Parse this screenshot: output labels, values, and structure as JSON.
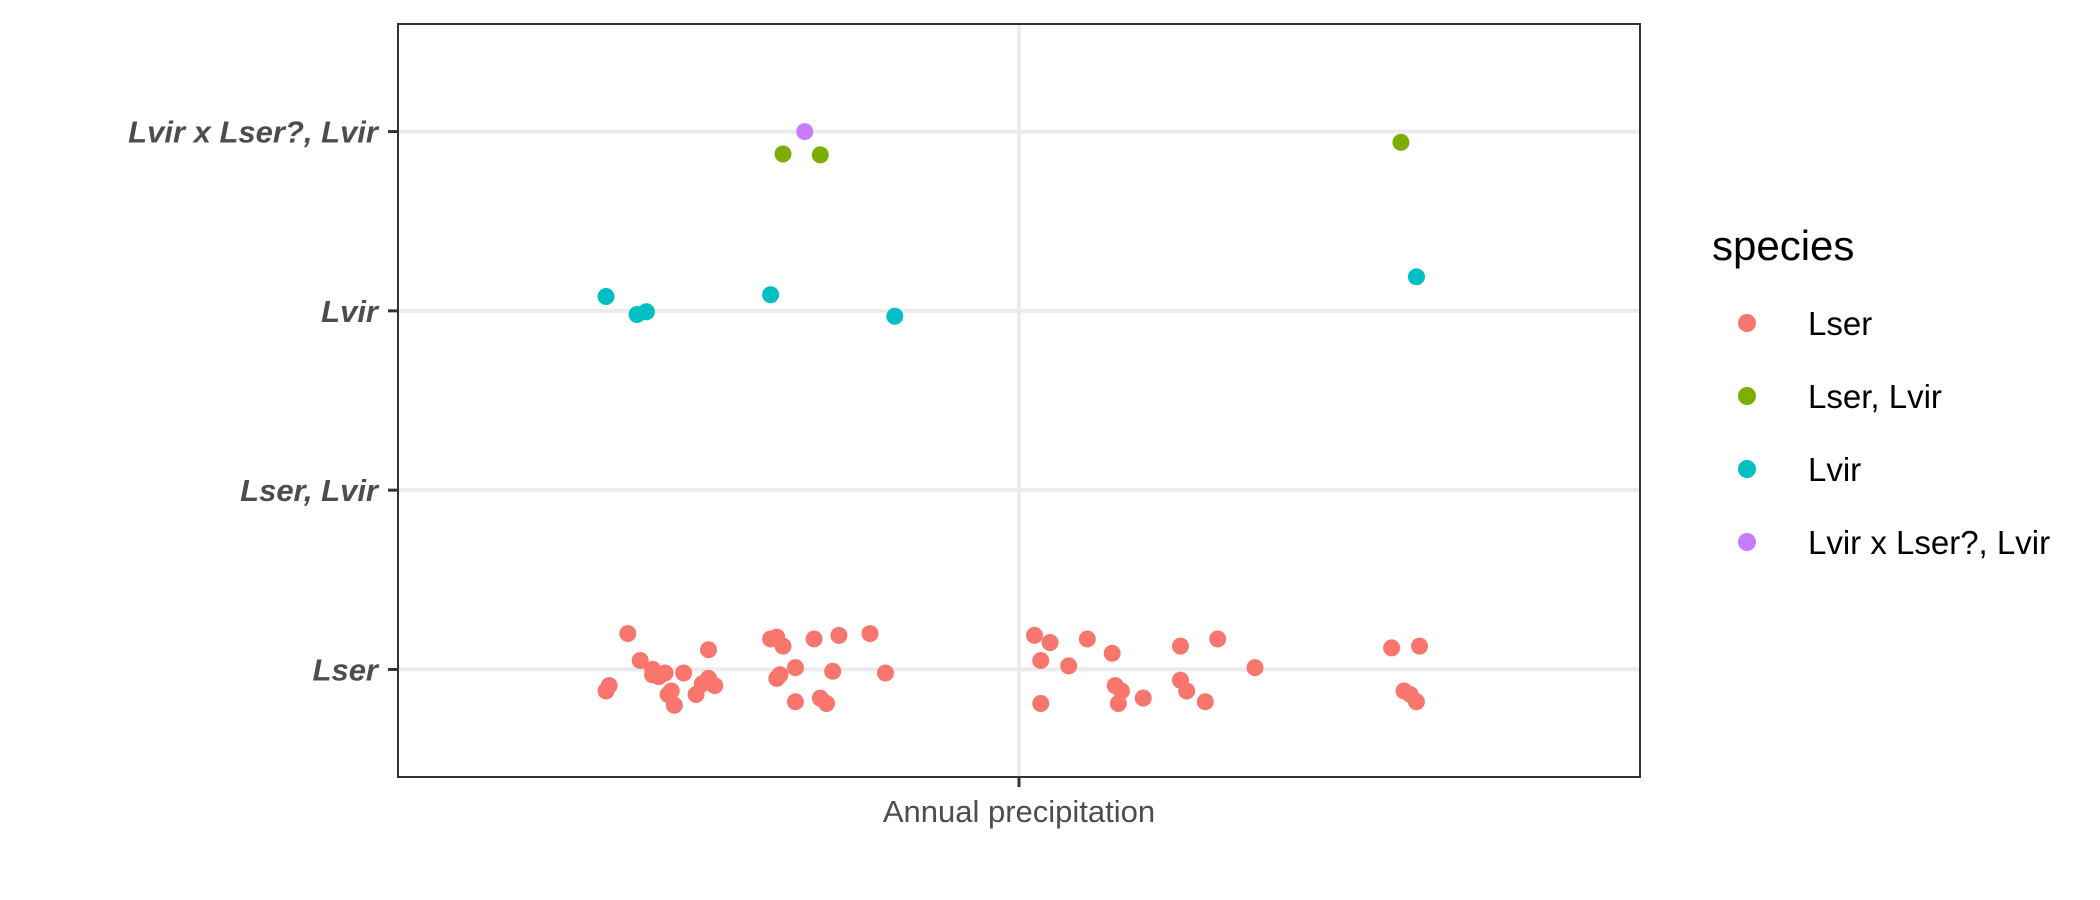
{
  "chart_data": {
    "type": "scatter",
    "title": "",
    "xlabel": "",
    "ylabel": "",
    "x_tick_labels": [
      "Annual precipitation"
    ],
    "y_categories": [
      "Lser",
      "Lser, Lvir",
      "Lvir",
      "Lvir x Lser?, Lvir"
    ],
    "grid": true,
    "legend_placement": "right",
    "legend_title": "species",
    "series": [
      {
        "name": "Lser",
        "color": "#F8766D",
        "points": [
          [
            -0.665,
            -0.12
          ],
          [
            -0.66,
            -0.09
          ],
          [
            -0.63,
            0.2
          ],
          [
            -0.61,
            0.05
          ],
          [
            -0.59,
            0.0
          ],
          [
            -0.59,
            -0.03
          ],
          [
            -0.58,
            -0.04
          ],
          [
            -0.57,
            -0.02
          ],
          [
            -0.565,
            -0.14
          ],
          [
            -0.56,
            -0.12
          ],
          [
            -0.555,
            -0.2
          ],
          [
            -0.54,
            -0.02
          ],
          [
            -0.52,
            -0.14
          ],
          [
            -0.51,
            -0.08
          ],
          [
            -0.5,
            -0.05
          ],
          [
            -0.5,
            0.11
          ],
          [
            -0.49,
            -0.09
          ],
          [
            -0.4,
            0.17
          ],
          [
            -0.39,
            0.18
          ],
          [
            -0.39,
            -0.05
          ],
          [
            -0.38,
            0.13
          ],
          [
            -0.385,
            -0.03
          ],
          [
            -0.36,
            0.01
          ],
          [
            -0.36,
            -0.18
          ],
          [
            -0.33,
            0.17
          ],
          [
            -0.32,
            -0.16
          ],
          [
            -0.31,
            -0.19
          ],
          [
            -0.3,
            -0.01
          ],
          [
            -0.29,
            0.19
          ],
          [
            -0.24,
            0.2
          ],
          [
            -0.215,
            -0.02
          ],
          [
            0.025,
            0.19
          ],
          [
            0.035,
            0.05
          ],
          [
            0.035,
            -0.19
          ],
          [
            0.05,
            0.15
          ],
          [
            0.08,
            0.02
          ],
          [
            0.11,
            0.17
          ],
          [
            0.15,
            0.09
          ],
          [
            0.155,
            -0.09
          ],
          [
            0.16,
            -0.19
          ],
          [
            0.165,
            -0.12
          ],
          [
            0.2,
            -0.16
          ],
          [
            0.26,
            0.13
          ],
          [
            0.26,
            -0.06
          ],
          [
            0.27,
            -0.12
          ],
          [
            0.3,
            -0.18
          ],
          [
            0.32,
            0.17
          ],
          [
            0.38,
            0.01
          ],
          [
            0.6,
            0.12
          ],
          [
            0.62,
            -0.12
          ],
          [
            0.63,
            -0.14
          ],
          [
            0.64,
            -0.18
          ],
          [
            0.645,
            0.13
          ]
        ]
      },
      {
        "name": "Lser, Lvir",
        "color": "#7CAE00",
        "points": [
          [
            -0.38,
            2.875
          ],
          [
            -0.32,
            2.87
          ],
          [
            0.615,
            2.94
          ]
        ]
      },
      {
        "name": "Lvir",
        "color": "#00BFC4",
        "points": [
          [
            -0.665,
            2.08
          ],
          [
            -0.615,
            1.98
          ],
          [
            -0.6,
            1.995
          ],
          [
            -0.4,
            2.09
          ],
          [
            -0.2,
            1.97
          ],
          [
            0.64,
            2.19
          ]
        ]
      },
      {
        "name": "Lvir x Lser?, Lvir",
        "color": "#C77CFF",
        "points": [
          [
            -0.345,
            3.0
          ]
        ]
      }
    ],
    "xlim": [
      -1,
      1
    ],
    "ylim": [
      -0.6,
      3.6
    ]
  }
}
